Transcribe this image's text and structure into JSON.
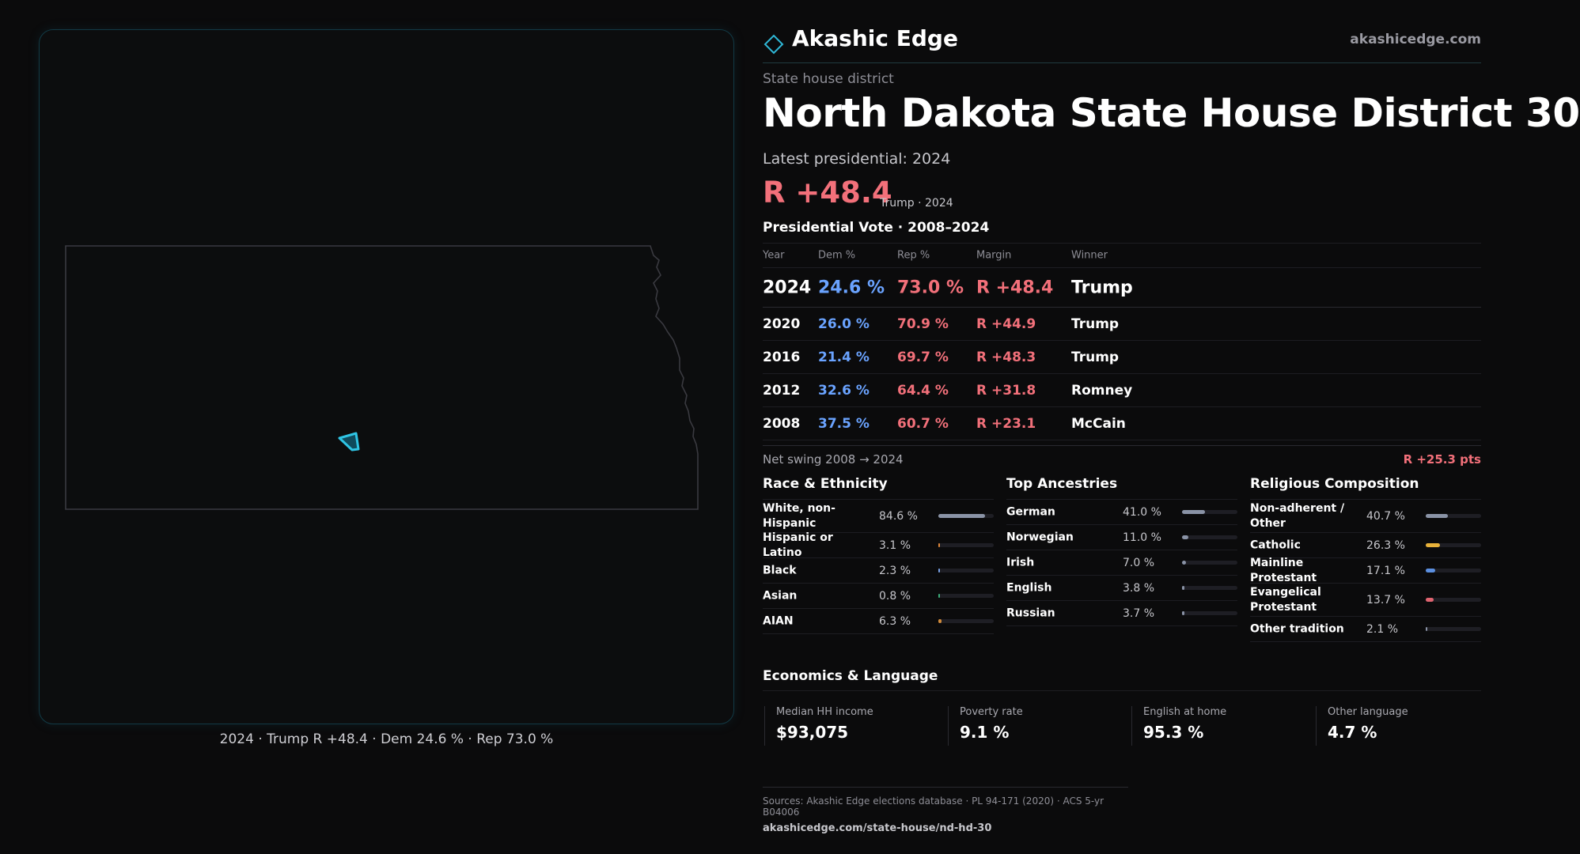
{
  "brand": {
    "name": "Akashic Edge",
    "url": "akashicedge.com",
    "logo_icon": "diamond-icon",
    "accent": "#2fb7d6"
  },
  "district": {
    "kind": "State house district",
    "title": "North Dakota State House District 30",
    "latest_label": "Latest presidential: 2024",
    "margin": "R +48.4",
    "margin_sub": "Trump · 2024"
  },
  "map": {
    "caption": "2024 · Trump R +48.4 · Dem 24.6 % · Rep 73.0 %"
  },
  "presidential": {
    "title": "Presidential Vote · 2008–2024",
    "headers": {
      "year": "Year",
      "dem": "Dem %",
      "rep": "Rep %",
      "margin": "Margin",
      "winner": "Winner"
    },
    "rows": [
      {
        "year": "2024",
        "dem": "24.6 %",
        "rep": "73.0 %",
        "margin": "R +48.4",
        "winner": "Trump"
      },
      {
        "year": "2020",
        "dem": "26.0 %",
        "rep": "70.9 %",
        "margin": "R +44.9",
        "winner": "Trump"
      },
      {
        "year": "2016",
        "dem": "21.4 %",
        "rep": "69.7 %",
        "margin": "R +48.3",
        "winner": "Trump"
      },
      {
        "year": "2012",
        "dem": "32.6 %",
        "rep": "64.4 %",
        "margin": "R +31.8",
        "winner": "Romney"
      },
      {
        "year": "2008",
        "dem": "37.5 %",
        "rep": "60.7 %",
        "margin": "R +23.1",
        "winner": "McCain"
      }
    ],
    "swing_label": "Net swing 2008 → 2024",
    "swing_value": "R +25.3 pts"
  },
  "race": {
    "title": "Race & Ethnicity",
    "rows": [
      {
        "label": "White, non-Hispanic",
        "value": "84.6 %",
        "fraction": 0.846,
        "color": "#8a93a6"
      },
      {
        "label": "Hispanic or Latino",
        "value": "3.1 %",
        "fraction": 0.031,
        "color": "#e0883a"
      },
      {
        "label": "Black",
        "value": "2.3 %",
        "fraction": 0.023,
        "color": "#7aa2e8"
      },
      {
        "label": "Asian",
        "value": "0.8 %",
        "fraction": 0.008,
        "color": "#3cae7a"
      },
      {
        "label": "AIAN",
        "value": "6.3 %",
        "fraction": 0.063,
        "color": "#d08a3a"
      }
    ]
  },
  "ancestry": {
    "title": "Top Ancestries",
    "rows": [
      {
        "label": "German",
        "value": "41.0 %",
        "fraction": 0.41,
        "color": "#8a93a6"
      },
      {
        "label": "Norwegian",
        "value": "11.0 %",
        "fraction": 0.11,
        "color": "#8a93a6"
      },
      {
        "label": "Irish",
        "value": "7.0 %",
        "fraction": 0.07,
        "color": "#8a93a6"
      },
      {
        "label": "English",
        "value": "3.8 %",
        "fraction": 0.038,
        "color": "#8a93a6"
      },
      {
        "label": "Russian",
        "value": "3.7 %",
        "fraction": 0.037,
        "color": "#8a93a6"
      }
    ]
  },
  "religion": {
    "title": "Religious Composition",
    "rows": [
      {
        "label": "Non-adherent / Other",
        "value": "40.7 %",
        "fraction": 0.407,
        "color": "#8a93a6"
      },
      {
        "label": "Catholic",
        "value": "26.3 %",
        "fraction": 0.263,
        "color": "#e8b23a"
      },
      {
        "label": "Mainline Protestant",
        "value": "17.1 %",
        "fraction": 0.171,
        "color": "#5b8fe0"
      },
      {
        "label": "Evangelical Protestant",
        "value": "13.7 %",
        "fraction": 0.137,
        "color": "#e06470"
      },
      {
        "label": "Other tradition",
        "value": "2.1 %",
        "fraction": 0.021,
        "color": "#8a93a6"
      }
    ]
  },
  "economics": {
    "title": "Economics & Language",
    "items": [
      {
        "label": "Median HH income",
        "value": "$93,075"
      },
      {
        "label": "Poverty rate",
        "value": "9.1 %"
      },
      {
        "label": "English at home",
        "value": "95.3 %"
      },
      {
        "label": "Other language",
        "value": "4.7 %"
      }
    ]
  },
  "sources": {
    "text": "Sources: Akashic Edge elections database · PL 94-171 (2020) · ACS 5-yr B04006",
    "url": "akashicedge.com/state-house/nd-hd-30"
  }
}
